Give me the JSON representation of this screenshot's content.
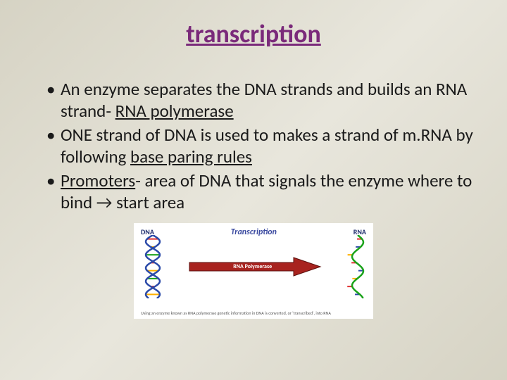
{
  "title": {
    "text": "transcription",
    "color": "#7a2a7a",
    "fontsize": 36
  },
  "bullets": {
    "fontsize": 25,
    "color": "#1a1a1a",
    "items": [
      {
        "pre": "An enzyme separates the DNA strands and builds an RNA strand- ",
        "u": "RNA polymerase",
        "post": ""
      },
      {
        "pre": "ONE strand of DNA is used to makes a strand of m.RNA by following ",
        "u": "base paring rules",
        "post": ""
      },
      {
        "pre": "",
        "u": "Promoters",
        "post": "- area of DNA that signals the enzyme where to bind → start area"
      }
    ]
  },
  "diagram": {
    "background": "#ffffff",
    "labels": {
      "left": "DNA",
      "center": "Transcription",
      "right": "RNA"
    },
    "arrow": {
      "fill": "#a8231f",
      "stroke": "#5a0f0c",
      "label": "RNA Polymerase"
    },
    "dna": {
      "strand_colors": [
        "#2b4aa8",
        "#2b4aa8"
      ],
      "rung_colors": [
        "#e03030",
        "#ffb000",
        "#1aa31a",
        "#e03030",
        "#ffb000",
        "#1aa31a",
        "#e03030",
        "#ffb000"
      ]
    },
    "rna": {
      "backbone_color": "#1aa31a",
      "base_colors": [
        "#e03030",
        "#2b4aa8",
        "#ffb000",
        "#e03030",
        "#2b4aa8",
        "#ffb000",
        "#e03030",
        "#2b4aa8"
      ]
    },
    "caption": "Using an enzyme known as RNA polymerase genetic information in DNA is converted, or 'transcribed', into RNA"
  }
}
